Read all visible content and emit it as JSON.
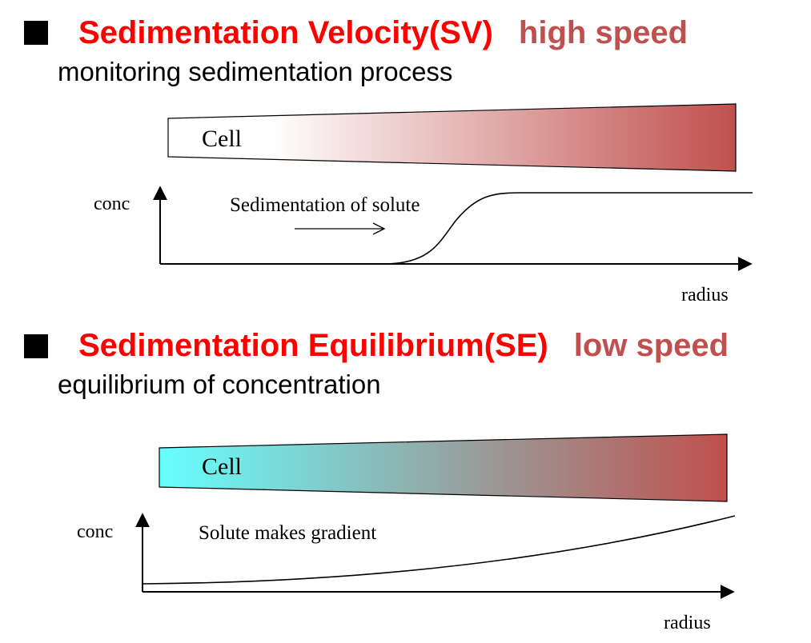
{
  "sv": {
    "mode": "Sedimentation Velocity(SV)",
    "speed": "high speed",
    "subtitle": "monitoring sedimentation process",
    "cell_label": "Cell",
    "y_label": "conc",
    "x_label": "radius",
    "annotation": "Sedimentation of solute",
    "colors": {
      "gradient_start": "#ffffff",
      "gradient_end": "#c0504d"
    }
  },
  "se": {
    "mode": "Sedimentation Equilibrium(SE)",
    "speed": "low speed",
    "subtitle": "equilibrium of concentration",
    "cell_label": "Cell",
    "y_label": "conc",
    "x_label": "radius",
    "annotation": "Solute makes gradient",
    "colors": {
      "gradient_start": "#66ffff",
      "gradient_end": "#c0504d"
    }
  },
  "colors": {
    "mode_title": "#ff0000",
    "speed_title": "#c0504d"
  }
}
